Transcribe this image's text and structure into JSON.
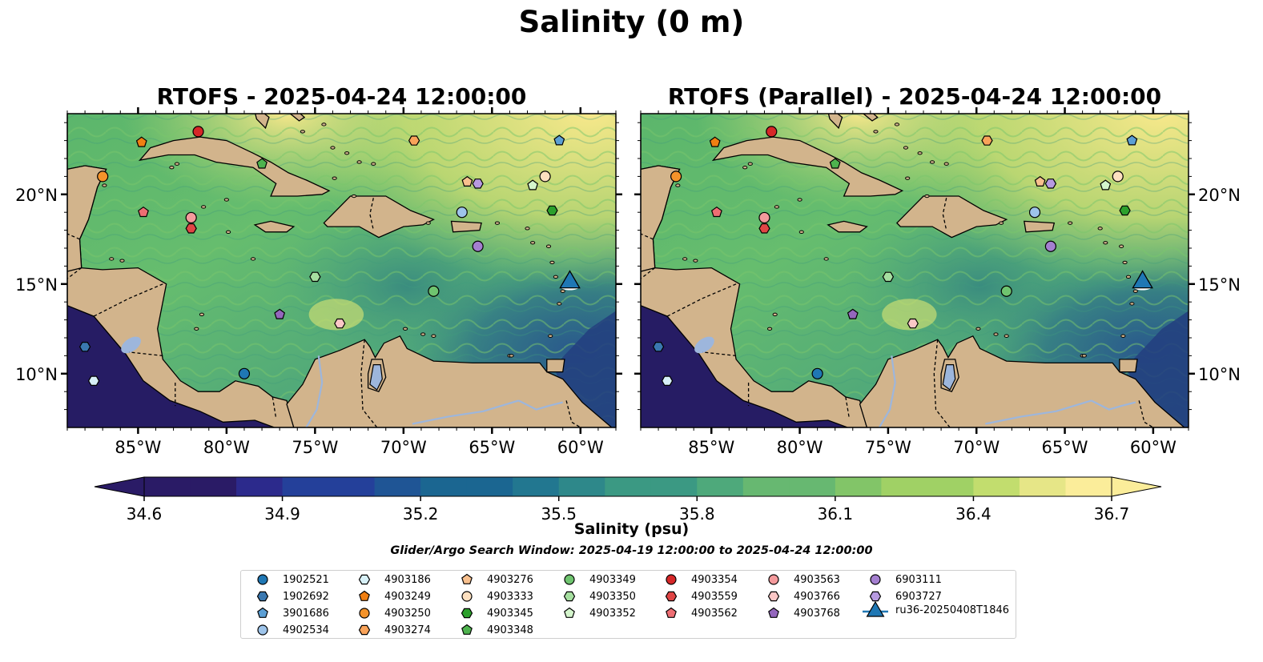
{
  "title": "Salinity (0 m)",
  "panels": [
    {
      "title": "RTOFS - 2025-04-24 12:00:00"
    },
    {
      "title": "RTOFS (Parallel) - 2025-04-24 12:00:00"
    }
  ],
  "map": {
    "lon_range": [
      -89,
      -58
    ],
    "lat_range": [
      7,
      24.5
    ],
    "lon_ticks": [
      "85°W",
      "80°W",
      "75°W",
      "70°W",
      "65°W",
      "60°W"
    ],
    "lat_ticks": [
      "20°N",
      "15°N",
      "10°N"
    ],
    "land_color": "#d2b48c",
    "river_color": "#9db6dc",
    "pacific_color": "#261c64"
  },
  "colorbar": {
    "label": "Salinity (psu)",
    "ticks": [
      "34.6",
      "34.9",
      "35.2",
      "35.5",
      "35.8",
      "36.1",
      "36.4",
      "36.7"
    ],
    "min": 34.6,
    "max": 36.7,
    "extend": "both",
    "colormap": "haline"
  },
  "search_window": "Glider/Argo Search Window: 2025-04-19 12:00:00 to 2025-04-24 12:00:00",
  "platforms": [
    {
      "id": "1902521",
      "marker": "circle",
      "color": "#1f77b4",
      "lon": -79.0,
      "lat": 10.0
    },
    {
      "id": "1902692",
      "marker": "hexagon",
      "color": "#3a78b0",
      "lon": -88.0,
      "lat": 11.5
    },
    {
      "id": "3901686",
      "marker": "pentagon",
      "color": "#5c9fd4",
      "lon": -61.2,
      "lat": 23.0
    },
    {
      "id": "4902534",
      "marker": "circle",
      "color": "#9ec4ea",
      "lon": -66.7,
      "lat": 19.0
    },
    {
      "id": "4903186",
      "marker": "hexagon",
      "color": "#d7f0f7",
      "lon": -87.5,
      "lat": 9.6
    },
    {
      "id": "4903249",
      "marker": "pentagon",
      "color": "#f07f12",
      "lon": -84.8,
      "lat": 22.9
    },
    {
      "id": "4903250",
      "marker": "circle",
      "color": "#f4932a",
      "lon": -87.0,
      "lat": 21.0
    },
    {
      "id": "4903274",
      "marker": "hexagon",
      "color": "#f9a35a",
      "lon": -69.4,
      "lat": 23.0
    },
    {
      "id": "4903276",
      "marker": "pentagon",
      "color": "#f8c08e",
      "lon": -66.4,
      "lat": 20.7
    },
    {
      "id": "4903333",
      "marker": "circle",
      "color": "#fde0c0",
      "lon": -62.0,
      "lat": 21.0
    },
    {
      "id": "4903345",
      "marker": "hexagon",
      "color": "#2ca02c",
      "lon": -61.6,
      "lat": 19.1
    },
    {
      "id": "4903348",
      "marker": "pentagon",
      "color": "#4eb34e",
      "lon": -78.0,
      "lat": 21.7
    },
    {
      "id": "4903349",
      "marker": "circle",
      "color": "#6fc46f",
      "lon": -68.3,
      "lat": 14.6
    },
    {
      "id": "4903350",
      "marker": "hexagon",
      "color": "#a6dfa0",
      "lon": -75.0,
      "lat": 15.4
    },
    {
      "id": "4903352",
      "marker": "pentagon",
      "color": "#d4f5cc",
      "lon": -62.7,
      "lat": 20.5
    },
    {
      "id": "4903354",
      "marker": "circle",
      "color": "#d62728",
      "lon": -81.6,
      "lat": 23.5
    },
    {
      "id": "4903559",
      "marker": "hexagon",
      "color": "#e04545",
      "lon": -82.0,
      "lat": 18.1
    },
    {
      "id": "4903562",
      "marker": "pentagon",
      "color": "#ee6e73",
      "lon": -84.7,
      "lat": 19.0
    },
    {
      "id": "4903563",
      "marker": "circle",
      "color": "#f49a9c",
      "lon": -82.0,
      "lat": 18.7
    },
    {
      "id": "4903766",
      "marker": "hexagon",
      "color": "#fbc7c6",
      "lon": -73.6,
      "lat": 12.8
    },
    {
      "id": "4903768",
      "marker": "pentagon",
      "color": "#9467bd",
      "lon": -77.0,
      "lat": 13.3
    },
    {
      "id": "6903111",
      "marker": "circle",
      "color": "#a47fd0",
      "lon": -65.8,
      "lat": 17.1
    },
    {
      "id": "6903727",
      "marker": "hexagon",
      "color": "#b79ae0",
      "lon": -65.8,
      "lat": 20.6
    },
    {
      "id": "ru36-20250408T1846",
      "marker": "triangle",
      "color": "#1f77b4",
      "lon": -60.6,
      "lat": 15.1
    }
  ]
}
